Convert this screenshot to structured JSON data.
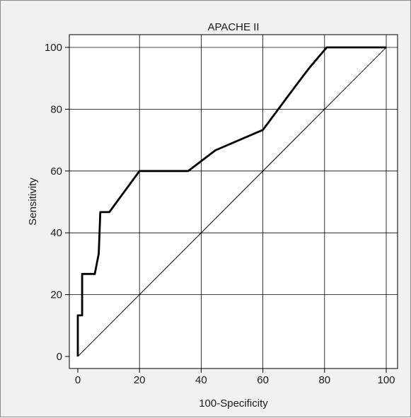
{
  "chart_data": {
    "type": "line",
    "title": "APACHE II",
    "xlabel": "100-Specificity",
    "ylabel": "Sensitivity",
    "xlim": [
      0,
      100
    ],
    "ylim": [
      0,
      100
    ],
    "xticks": [
      0,
      20,
      40,
      60,
      80,
      100
    ],
    "yticks": [
      0,
      20,
      40,
      60,
      80,
      100
    ],
    "grid": true,
    "series": [
      {
        "x": [
          0,
          0,
          1.4,
          1.4,
          5.5,
          6.8,
          7.3,
          10.2,
          20,
          35.8,
          44.6,
          60,
          70,
          75,
          80.7,
          100
        ],
        "y": [
          0,
          13.3,
          13.3,
          26.7,
          26.7,
          33.3,
          46.7,
          46.7,
          60,
          60,
          66.7,
          73.3,
          86.7,
          93.3,
          100,
          100
        ]
      }
    ],
    "reference_line": {
      "x": [
        0,
        100
      ],
      "y": [
        0,
        100
      ]
    },
    "colors": {
      "curve": "#000000",
      "grid": "#000000",
      "background": "#f1f1f1"
    }
  }
}
